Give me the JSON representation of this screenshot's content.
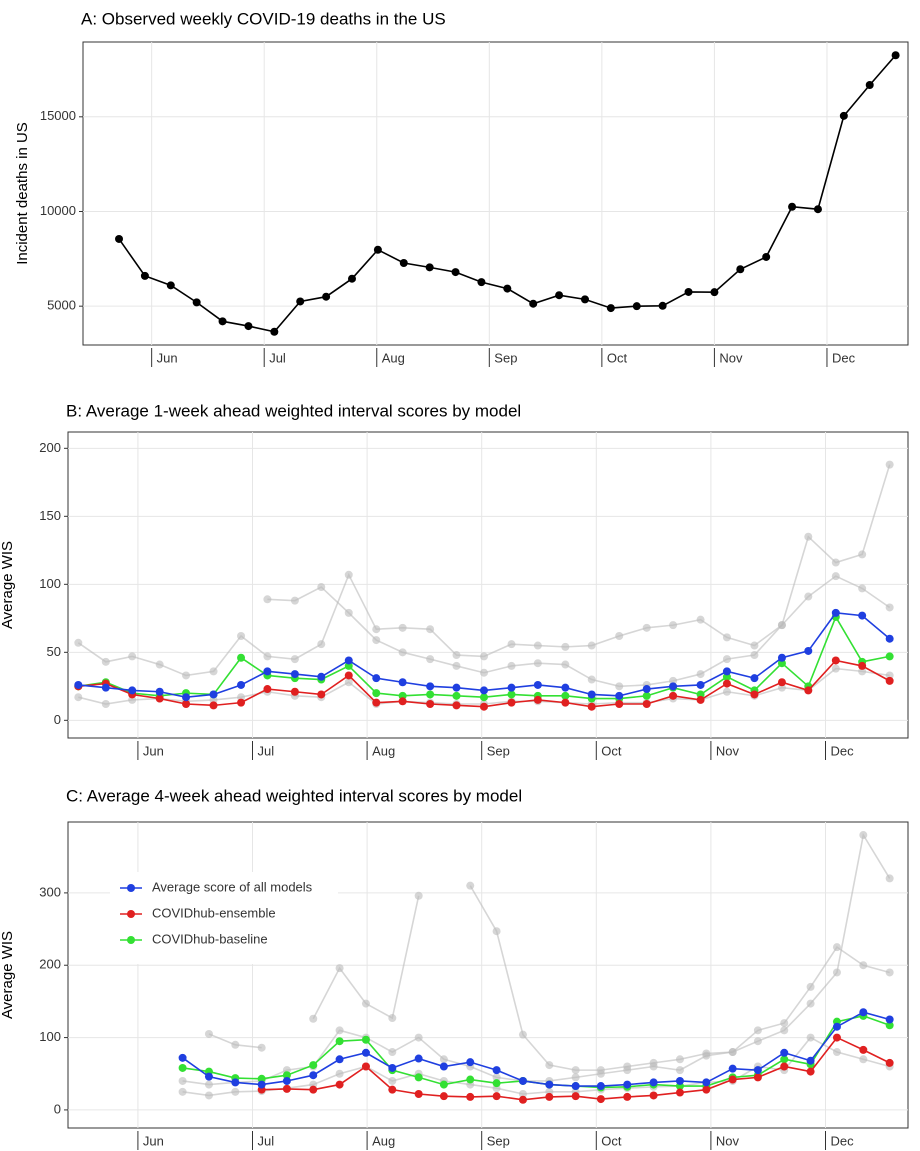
{
  "chart_data": [
    {
      "type": "line",
      "title": "A: Observed weekly COVID-19 deaths in the US",
      "ylabel": "Incident deaths in US",
      "x": [
        5.71,
        5.94,
        6.17,
        6.4,
        6.63,
        6.86,
        7.09,
        7.32,
        7.55,
        7.78,
        8.01,
        8.24,
        8.47,
        8.7,
        8.93,
        9.16,
        9.39,
        9.62,
        9.85,
        10.08,
        10.31,
        10.54,
        10.77,
        11.0,
        11.23,
        11.46,
        11.69,
        11.92,
        12.15,
        12.38,
        12.61
      ],
      "series": [
        {
          "color": "#000000",
          "values": [
            8550,
            6600,
            6100,
            5200,
            4200,
            3950,
            3650,
            5250,
            5500,
            6450,
            7980,
            7280,
            7050,
            6800,
            6270,
            5930,
            5130,
            5580,
            5360,
            4900,
            5000,
            5020,
            5750,
            5740,
            6950,
            7600,
            10250,
            10120,
            15050,
            16680,
            18250
          ]
        }
      ],
      "xlim": [
        5.39,
        12.72
      ],
      "xticks": [
        {
          "value": 6,
          "label": "Jun"
        },
        {
          "value": 7,
          "label": "Jul"
        },
        {
          "value": 8,
          "label": "Aug"
        },
        {
          "value": 9,
          "label": "Sep"
        },
        {
          "value": 10,
          "label": "Oct"
        },
        {
          "value": 11,
          "label": "Nov"
        },
        {
          "value": 12,
          "label": "Dec"
        }
      ],
      "ylim": [
        2950,
        18950
      ],
      "yticks": [
        5000,
        10000,
        15000
      ],
      "grid": true
    },
    {
      "type": "line",
      "title": "B: Average 1-week ahead weighted interval scores by model",
      "ylabel": "Average WIS",
      "x": [
        5.48,
        5.72,
        5.95,
        6.19,
        6.42,
        6.66,
        6.9,
        7.13,
        7.37,
        7.6,
        7.84,
        8.08,
        8.31,
        8.55,
        8.78,
        9.02,
        9.26,
        9.49,
        9.73,
        9.96,
        10.2,
        10.44,
        10.67,
        10.91,
        11.14,
        11.38,
        11.62,
        11.85,
        12.09,
        12.32,
        12.56
      ],
      "series": [
        {
          "color": "#bbbbbb",
          "values": [
            57,
            43,
            47,
            41,
            33,
            36,
            62,
            47,
            45,
            56,
            107,
            67,
            68,
            67,
            48,
            47,
            56,
            55,
            54,
            55,
            62,
            68,
            70,
            74,
            61,
            55,
            70,
            135,
            116,
            122,
            188
          ]
        },
        {
          "color": "#bbbbbb",
          "values": [
            17,
            12,
            15,
            16,
            14,
            15,
            17,
            21,
            18,
            17,
            28,
            12,
            14,
            13,
            12,
            12,
            14,
            14,
            13,
            12,
            13,
            13,
            16,
            15,
            21,
            18,
            24,
            22,
            38,
            36,
            33
          ]
        },
        {
          "color": "#bbbbbb",
          "values": [
            null,
            null,
            null,
            null,
            null,
            null,
            null,
            89,
            88,
            98,
            79,
            59,
            50,
            45,
            40,
            35,
            40,
            42,
            41,
            30,
            25,
            26,
            29,
            34,
            45,
            48,
            70,
            91,
            106,
            97,
            83
          ]
        },
        {
          "color": "#33e033",
          "values": [
            25,
            28,
            20,
            18,
            20,
            19,
            46,
            33,
            31,
            30,
            40,
            20,
            18,
            19,
            18,
            17,
            19,
            18,
            18,
            16,
            16,
            18,
            24,
            19,
            32,
            22,
            42,
            25,
            76,
            43,
            47
          ]
        },
        {
          "color": "#e02020",
          "values": [
            25,
            27,
            19,
            16,
            12,
            11,
            13,
            23,
            21,
            19,
            33,
            13,
            14,
            12,
            11,
            10,
            13,
            15,
            13,
            10,
            12,
            12,
            18,
            15,
            27,
            19,
            28,
            22,
            44,
            40,
            29
          ]
        },
        {
          "color": "#1f3fe0",
          "values": [
            26,
            24,
            22,
            21,
            17,
            19,
            26,
            36,
            34,
            32,
            44,
            31,
            28,
            25,
            24,
            22,
            24,
            26,
            24,
            19,
            18,
            23,
            25,
            26,
            36,
            31,
            46,
            51,
            79,
            77,
            60
          ]
        }
      ],
      "xlim": [
        5.39,
        12.72
      ],
      "xticks": [
        {
          "value": 6,
          "label": "Jun"
        },
        {
          "value": 7,
          "label": "Jul"
        },
        {
          "value": 8,
          "label": "Aug"
        },
        {
          "value": 9,
          "label": "Sep"
        },
        {
          "value": 10,
          "label": "Oct"
        },
        {
          "value": 11,
          "label": "Nov"
        },
        {
          "value": 12,
          "label": "Dec"
        }
      ],
      "ylim": [
        -13,
        212
      ],
      "yticks": [
        0,
        50,
        100,
        150,
        200
      ],
      "grid": true
    },
    {
      "type": "line",
      "title": "C: Average 4-week ahead weighted interval scores by model",
      "ylabel": "Average WIS",
      "x": [
        6.39,
        6.62,
        6.85,
        7.08,
        7.3,
        7.53,
        7.76,
        7.99,
        8.22,
        8.45,
        8.67,
        8.9,
        9.13,
        9.36,
        9.59,
        9.82,
        10.04,
        10.27,
        10.5,
        10.73,
        10.96,
        11.19,
        11.41,
        11.64,
        11.87,
        12.1,
        12.33,
        12.56
      ],
      "series": [
        {
          "color": "#bbbbbb",
          "values": [
            null,
            105,
            90,
            86,
            null,
            126,
            196,
            147,
            127,
            296,
            null,
            310,
            247,
            104,
            62,
            55,
            55,
            60,
            65,
            70,
            78,
            80,
            95,
            110,
            147,
            190,
            380,
            320
          ]
        },
        {
          "color": "#bbbbbb",
          "values": [
            25,
            20,
            25,
            26,
            30,
            35,
            50,
            60,
            40,
            50,
            40,
            35,
            30,
            22,
            25,
            25,
            28,
            30,
            32,
            33,
            38,
            40,
            60,
            55,
            100,
            80,
            70,
            60
          ]
        },
        {
          "color": "#bbbbbb",
          "values": [
            40,
            35,
            38,
            40,
            55,
            60,
            110,
            100,
            80,
            100,
            70,
            60,
            45,
            40,
            40,
            45,
            50,
            55,
            60,
            55,
            75,
            80,
            110,
            120,
            170,
            225,
            200,
            190
          ]
        },
        {
          "name": "COVIDhub-baseline",
          "color": "#33e033",
          "values": [
            58,
            53,
            44,
            43,
            48,
            62,
            95,
            97,
            55,
            45,
            35,
            42,
            37,
            40,
            35,
            33,
            31,
            32,
            35,
            33,
            33,
            45,
            48,
            70,
            63,
            122,
            130,
            117
          ]
        },
        {
          "name": "COVIDhub-ensemble",
          "color": "#e02020",
          "values": [
            null,
            null,
            null,
            28,
            29,
            28,
            35,
            60,
            28,
            22,
            19,
            18,
            19,
            14,
            18,
            19,
            15,
            18,
            20,
            24,
            28,
            42,
            45,
            60,
            53,
            100,
            83,
            65
          ]
        },
        {
          "name": "Average score of all models",
          "color": "#1f3fe0",
          "values": [
            72,
            46,
            38,
            35,
            40,
            48,
            70,
            79,
            58,
            71,
            60,
            66,
            55,
            40,
            35,
            33,
            33,
            35,
            38,
            40,
            38,
            57,
            55,
            79,
            68,
            115,
            135,
            125
          ]
        }
      ],
      "xlim": [
        5.39,
        12.72
      ],
      "xticks": [
        {
          "value": 6,
          "label": "Jun"
        },
        {
          "value": 7,
          "label": "Jul"
        },
        {
          "value": 8,
          "label": "Aug"
        },
        {
          "value": 9,
          "label": "Sep"
        },
        {
          "value": 10,
          "label": "Oct"
        },
        {
          "value": 11,
          "label": "Nov"
        },
        {
          "value": 12,
          "label": "Dec"
        }
      ],
      "ylim": [
        -25,
        398
      ],
      "yticks": [
        0,
        100,
        200,
        300
      ],
      "grid": true,
      "legend": "top-left"
    }
  ]
}
